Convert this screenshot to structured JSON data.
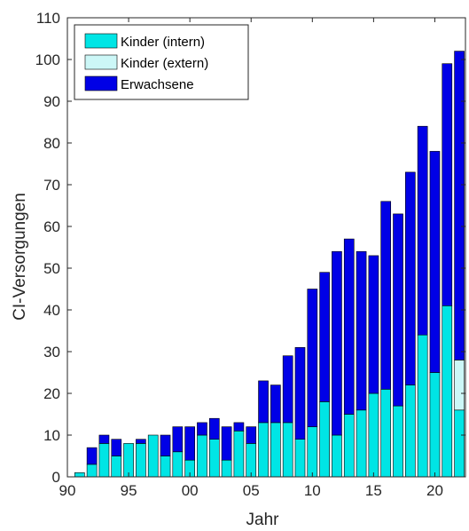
{
  "chart_data": {
    "type": "bar",
    "stacked": true,
    "xlabel": "Jahr",
    "ylabel": "CI-Versorgungen",
    "ylim": [
      0,
      110
    ],
    "yticks": [
      0,
      10,
      20,
      30,
      40,
      50,
      60,
      70,
      80,
      90,
      100,
      110
    ],
    "xlim": [
      1990,
      2022.5
    ],
    "xticks": [
      {
        "value": 1990,
        "label": "90"
      },
      {
        "value": 1995,
        "label": "95"
      },
      {
        "value": 2000,
        "label": "00"
      },
      {
        "value": 2005,
        "label": "05"
      },
      {
        "value": 2010,
        "label": "10"
      },
      {
        "value": 2015,
        "label": "15"
      },
      {
        "value": 2020,
        "label": "20"
      }
    ],
    "grid": false,
    "legend_position": "top-left",
    "years": [
      1991,
      1992,
      1993,
      1994,
      1995,
      1996,
      1997,
      1998,
      1999,
      2000,
      2001,
      2002,
      2003,
      2004,
      2005,
      2006,
      2007,
      2008,
      2009,
      2010,
      2011,
      2012,
      2013,
      2014,
      2015,
      2016,
      2017,
      2018,
      2019,
      2020,
      2021,
      2022
    ],
    "series": [
      {
        "name": "Kinder (intern)",
        "color": "#00e5e5",
        "values": [
          1,
          3,
          8,
          5,
          8,
          8,
          10,
          5,
          6,
          4,
          10,
          9,
          4,
          11,
          8,
          13,
          13,
          13,
          9,
          12,
          18,
          10,
          15,
          16,
          20,
          21,
          17,
          22,
          34,
          25,
          41,
          16
        ]
      },
      {
        "name": "Kinder (extern)",
        "color": "#ccf7f7",
        "values": [
          0,
          0,
          0,
          0,
          0,
          0,
          0,
          0,
          0,
          0,
          0,
          0,
          0,
          0,
          0,
          0,
          0,
          0,
          0,
          0,
          0,
          0,
          0,
          0,
          0,
          0,
          0,
          0,
          0,
          0,
          0,
          12
        ]
      },
      {
        "name": "Erwachsene",
        "color": "#0000e6",
        "values": [
          0,
          4,
          2,
          4,
          0,
          1,
          0,
          5,
          6,
          8,
          3,
          5,
          8,
          2,
          4,
          10,
          9,
          16,
          22,
          33,
          31,
          44,
          42,
          38,
          33,
          45,
          46,
          51,
          50,
          53,
          58,
          74
        ]
      }
    ]
  }
}
